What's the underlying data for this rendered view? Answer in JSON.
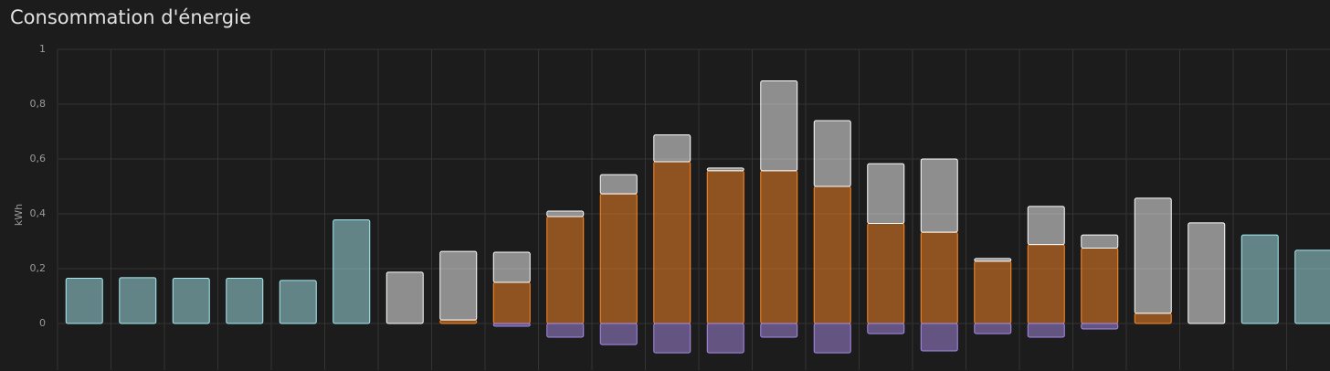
{
  "chart_data": {
    "type": "bar",
    "stacked": true,
    "title": "Consommation d'énergie",
    "y_label": "kWh",
    "categories": [
      null,
      null,
      null,
      null,
      null,
      null,
      null,
      null,
      null,
      null,
      null,
      null,
      null,
      null,
      null,
      null,
      null,
      null,
      null,
      null,
      null,
      null,
      null,
      null
    ],
    "series": [
      {
        "color": "#ff8a24",
        "values": [
          null,
          null,
          null,
          null,
          null,
          null,
          null,
          0.013,
          0.15,
          0.39,
          0.473,
          0.59,
          0.557,
          0.557,
          0.5,
          0.365,
          0.333,
          0.227,
          0.288,
          0.275,
          0.037,
          null,
          null,
          null
        ]
      },
      {
        "color": "#ffffff",
        "values": [
          null,
          null,
          null,
          null,
          null,
          null,
          0.187,
          0.25,
          0.11,
          0.02,
          0.07,
          0.098,
          0.01,
          0.328,
          0.24,
          0.218,
          0.267,
          0.01,
          0.139,
          0.048,
          0.42,
          0.367,
          null,
          null
        ]
      },
      {
        "color": "#a8ecf2",
        "values": [
          0.165,
          0.167,
          0.165,
          0.165,
          0.157,
          0.378,
          null,
          null,
          null,
          null,
          null,
          null,
          null,
          null,
          null,
          null,
          null,
          null,
          null,
          null,
          null,
          null,
          0.323,
          0.267
        ]
      },
      {
        "color": "#a98be8",
        "values": [
          null,
          null,
          null,
          null,
          null,
          null,
          null,
          null,
          -0.01,
          -0.05,
          -0.077,
          -0.107,
          -0.107,
          -0.05,
          -0.107,
          -0.037,
          -0.1,
          -0.037,
          -0.05,
          -0.02,
          null,
          null,
          null,
          null
        ]
      }
    ],
    "ylim": [
      -0.17,
      1
    ],
    "yticks": [
      0,
      {
        "value": 0.2,
        "label": "0,2"
      },
      {
        "value": 0.4,
        "label": "0,4"
      },
      {
        "value": 0.6,
        "label": "0,6"
      },
      {
        "value": 0.8,
        "label": "0,8"
      },
      1
    ],
    "grid": true
  }
}
